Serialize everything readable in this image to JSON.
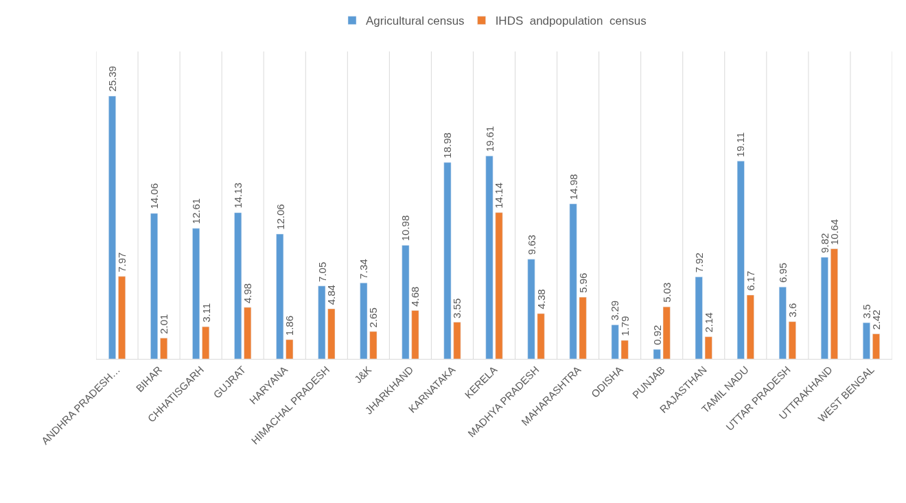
{
  "chart_data": {
    "type": "bar",
    "categories": [
      "ANDHRA PRADESH…",
      "BIHAR",
      "CHHATISGARH",
      "GUJRAT",
      "HARYANA",
      "HIMACHAL PRADESH",
      "J&K",
      "JHARKHAND",
      "KARNATAKA",
      "KERELA",
      "MADHYA PRADESH",
      "MAHARASHTRA",
      "ODISHA",
      "PUNJAB",
      "RAJASTHAN",
      "TAMIL NADU",
      "UTTAR PRADESH",
      "UTTRAKHAND",
      "WEST BENGAL"
    ],
    "series": [
      {
        "name": "Agricultural census",
        "color": "#5b9bd5",
        "values": [
          25.39,
          14.06,
          12.61,
          14.13,
          12.06,
          7.05,
          7.34,
          10.98,
          18.98,
          19.61,
          9.63,
          14.98,
          3.29,
          0.92,
          7.92,
          19.11,
          6.95,
          9.82,
          3.5
        ]
      },
      {
        "name": "IHDS  andpopulation  census",
        "color": "#ed7d31",
        "values": [
          7.97,
          2.01,
          3.11,
          4.98,
          1.86,
          4.84,
          2.65,
          4.68,
          3.55,
          14.14,
          4.38,
          5.96,
          1.79,
          5.03,
          2.14,
          6.17,
          3.6,
          10.64,
          2.42
        ]
      }
    ],
    "data_labels": true,
    "grid": "x",
    "legend": "top",
    "tick_labels": "x"
  }
}
